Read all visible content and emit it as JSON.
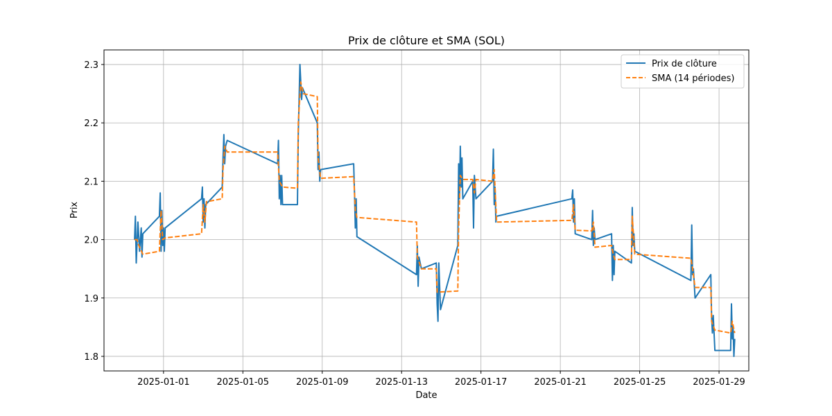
{
  "chart_data": {
    "type": "line",
    "title": "Prix de clôture et SMA (SOL)",
    "xlabel": "Date",
    "ylabel": "Prix",
    "xlim": [
      "2024-12-29T00:00",
      "2025-01-30T12:00"
    ],
    "ylim": [
      1.775,
      2.325
    ],
    "x_ticks": [
      "2025-01-01",
      "2025-01-05",
      "2025-01-09",
      "2025-01-13",
      "2025-01-17",
      "2025-01-21",
      "2025-01-25",
      "2025-01-29"
    ],
    "y_ticks": [
      1.8,
      1.9,
      2.0,
      2.1,
      2.2,
      2.3
    ],
    "y_tick_labels": [
      "1.8",
      "1.9",
      "2.0",
      "2.1",
      "2.2",
      "2.3"
    ],
    "grid": true,
    "legend_position": "top-right",
    "series": [
      {
        "name": "Prix de clôture",
        "color": "#1f77b4",
        "style": "solid",
        "points": [
          [
            "2024-12-30T13:00",
            2.0
          ],
          [
            "2024-12-30T14:00",
            2.04
          ],
          [
            "2024-12-30T15:00",
            1.96
          ],
          [
            "2024-12-30T17:00",
            2.03
          ],
          [
            "2024-12-30T19:00",
            1.98
          ],
          [
            "2024-12-30T21:00",
            2.02
          ],
          [
            "2024-12-30T22:00",
            1.97
          ],
          [
            "2024-12-30T23:00",
            2.01
          ],
          [
            "2024-12-31T19:00",
            2.04
          ],
          [
            "2024-12-31T20:00",
            2.08
          ],
          [
            "2024-12-31T21:00",
            1.98
          ],
          [
            "2024-12-31T22:00",
            2.05
          ],
          [
            "2024-12-31T23:00",
            1.99
          ],
          [
            "2025-01-01T00:00",
            2.02
          ],
          [
            "2025-01-01T01:00",
            1.98
          ],
          [
            "2025-01-01T02:00",
            2.02
          ],
          [
            "2025-01-02T22:00",
            2.07
          ],
          [
            "2025-01-02T23:00",
            2.09
          ],
          [
            "2025-01-03T00:00",
            2.03
          ],
          [
            "2025-01-03T01:00",
            2.07
          ],
          [
            "2025-01-03T02:00",
            2.02
          ],
          [
            "2025-01-03T03:00",
            2.06
          ],
          [
            "2025-01-03T23:00",
            2.09
          ],
          [
            "2025-01-04T00:00",
            2.14
          ],
          [
            "2025-01-04T01:00",
            2.18
          ],
          [
            "2025-01-04T02:00",
            2.13
          ],
          [
            "2025-01-04T03:00",
            2.16
          ],
          [
            "2025-01-04T05:00",
            2.17
          ],
          [
            "2025-01-06T18:00",
            2.13
          ],
          [
            "2025-01-06T19:00",
            2.17
          ],
          [
            "2025-01-06T20:00",
            2.07
          ],
          [
            "2025-01-06T21:00",
            2.11
          ],
          [
            "2025-01-06T22:00",
            2.06
          ],
          [
            "2025-01-06T23:00",
            2.11
          ],
          [
            "2025-01-07T00:00",
            2.06
          ],
          [
            "2025-01-07T18:00",
            2.06
          ],
          [
            "2025-01-07T19:00",
            2.18
          ],
          [
            "2025-01-07T21:00",
            2.3
          ],
          [
            "2025-01-07T23:00",
            2.24
          ],
          [
            "2025-01-08T00:00",
            2.26
          ],
          [
            "2025-01-08T18:00",
            2.2
          ],
          [
            "2025-01-08T19:00",
            2.12
          ],
          [
            "2025-01-08T20:00",
            2.15
          ],
          [
            "2025-01-08T21:00",
            2.1
          ],
          [
            "2025-01-08T22:00",
            2.12
          ],
          [
            "2025-01-10T14:00",
            2.13
          ],
          [
            "2025-01-10T15:00",
            2.08
          ],
          [
            "2025-01-10T16:00",
            2.02
          ],
          [
            "2025-01-10T17:00",
            2.07
          ],
          [
            "2025-01-10T18:00",
            2.005
          ],
          [
            "2025-01-13T18:00",
            1.94
          ],
          [
            "2025-01-13T19:00",
            1.99
          ],
          [
            "2025-01-13T20:00",
            1.92
          ],
          [
            "2025-01-13T21:00",
            1.97
          ],
          [
            "2025-01-14T00:00",
            1.95
          ],
          [
            "2025-01-14T18:00",
            1.96
          ],
          [
            "2025-01-14T19:00",
            1.89
          ],
          [
            "2025-01-14T20:00",
            1.86
          ],
          [
            "2025-01-14T21:00",
            1.96
          ],
          [
            "2025-01-14T23:00",
            1.88
          ],
          [
            "2025-01-15T20:00",
            1.99
          ],
          [
            "2025-01-15T21:00",
            2.13
          ],
          [
            "2025-01-15T22:00",
            2.07
          ],
          [
            "2025-01-15T23:00",
            2.16
          ],
          [
            "2025-01-16T00:00",
            2.09
          ],
          [
            "2025-01-16T01:00",
            2.14
          ],
          [
            "2025-01-16T02:00",
            2.07
          ],
          [
            "2025-01-16T14:00",
            2.1
          ],
          [
            "2025-01-16T15:00",
            2.02
          ],
          [
            "2025-01-16T16:00",
            2.11
          ],
          [
            "2025-01-16T18:00",
            2.07
          ],
          [
            "2025-01-17T14:00",
            2.1
          ],
          [
            "2025-01-17T15:00",
            2.155
          ],
          [
            "2025-01-17T16:00",
            2.06
          ],
          [
            "2025-01-17T17:00",
            2.09
          ],
          [
            "2025-01-17T18:00",
            2.03
          ],
          [
            "2025-01-17T19:00",
            2.04
          ],
          [
            "2025-01-21T14:00",
            2.07
          ],
          [
            "2025-01-21T15:00",
            2.085
          ],
          [
            "2025-01-21T16:00",
            2.03
          ],
          [
            "2025-01-21T17:00",
            2.07
          ],
          [
            "2025-01-21T18:00",
            2.01
          ],
          [
            "2025-01-22T14:00",
            2.0
          ],
          [
            "2025-01-22T15:00",
            2.05
          ],
          [
            "2025-01-22T16:00",
            1.99
          ],
          [
            "2025-01-22T17:00",
            2.02
          ],
          [
            "2025-01-22T18:00",
            2.0
          ],
          [
            "2025-01-23T14:00",
            2.01
          ],
          [
            "2025-01-23T15:00",
            1.93
          ],
          [
            "2025-01-23T16:00",
            1.99
          ],
          [
            "2025-01-23T17:00",
            1.94
          ],
          [
            "2025-01-23T18:00",
            1.98
          ],
          [
            "2025-01-24T14:00",
            1.96
          ],
          [
            "2025-01-24T15:00",
            2.055
          ],
          [
            "2025-01-24T16:00",
            1.99
          ],
          [
            "2025-01-24T17:00",
            2.01
          ],
          [
            "2025-01-24T18:00",
            1.98
          ],
          [
            "2025-01-27T14:00",
            1.93
          ],
          [
            "2025-01-27T15:00",
            2.025
          ],
          [
            "2025-01-27T16:00",
            1.94
          ],
          [
            "2025-01-27T17:00",
            1.95
          ],
          [
            "2025-01-27T19:00",
            1.9
          ],
          [
            "2025-01-28T14:00",
            1.94
          ],
          [
            "2025-01-28T15:00",
            1.87
          ],
          [
            "2025-01-28T16:00",
            1.84
          ],
          [
            "2025-01-28T17:00",
            1.87
          ],
          [
            "2025-01-28T18:00",
            1.84
          ],
          [
            "2025-01-28T19:00",
            1.81
          ],
          [
            "2025-01-29T14:00",
            1.81
          ],
          [
            "2025-01-29T15:00",
            1.89
          ],
          [
            "2025-01-29T16:00",
            1.83
          ],
          [
            "2025-01-29T17:00",
            1.85
          ],
          [
            "2025-01-29T18:00",
            1.8
          ],
          [
            "2025-01-29T19:00",
            1.83
          ]
        ]
      },
      {
        "name": "SMA (14 périodes)",
        "color": "#ff7f0e",
        "style": "dashed",
        "points": [
          [
            "2024-12-30T13:00",
            2.0
          ],
          [
            "2024-12-30T16:00",
            2.0
          ],
          [
            "2024-12-30T18:00",
            1.99
          ],
          [
            "2024-12-30T23:00",
            1.975
          ],
          [
            "2024-12-31T19:00",
            1.98
          ],
          [
            "2024-12-31T21:00",
            2.05
          ],
          [
            "2024-12-31T23:00",
            2.0
          ],
          [
            "2025-01-01T02:00",
            2.003
          ],
          [
            "2025-01-02T22:00",
            2.01
          ],
          [
            "2025-01-03T00:00",
            2.06
          ],
          [
            "2025-01-03T02:00",
            2.03
          ],
          [
            "2025-01-03T04:00",
            2.065
          ],
          [
            "2025-01-03T23:00",
            2.07
          ],
          [
            "2025-01-04T00:00",
            2.12
          ],
          [
            "2025-01-04T02:00",
            2.16
          ],
          [
            "2025-01-04T05:00",
            2.15
          ],
          [
            "2025-01-06T18:00",
            2.15
          ],
          [
            "2025-01-06T20:00",
            2.1
          ],
          [
            "2025-01-07T00:00",
            2.09
          ],
          [
            "2025-01-07T18:00",
            2.088
          ],
          [
            "2025-01-07T19:00",
            2.2
          ],
          [
            "2025-01-07T22:00",
            2.27
          ],
          [
            "2025-01-08T01:00",
            2.25
          ],
          [
            "2025-01-08T18:00",
            2.245
          ],
          [
            "2025-01-08T19:00",
            2.14
          ],
          [
            "2025-01-08T22:00",
            2.105
          ],
          [
            "2025-01-10T14:00",
            2.108
          ],
          [
            "2025-01-10T15:00",
            2.08
          ],
          [
            "2025-01-10T16:00",
            2.05
          ],
          [
            "2025-01-10T18:00",
            2.038
          ],
          [
            "2025-01-13T18:00",
            2.03
          ],
          [
            "2025-01-13T19:00",
            1.97
          ],
          [
            "2025-01-14T00:00",
            1.95
          ],
          [
            "2025-01-14T18:00",
            1.95
          ],
          [
            "2025-01-14T19:00",
            1.91
          ],
          [
            "2025-01-15T20:00",
            1.912
          ],
          [
            "2025-01-15T21:00",
            2.02
          ],
          [
            "2025-01-15T23:00",
            2.11
          ],
          [
            "2025-01-16T02:00",
            2.103
          ],
          [
            "2025-01-16T14:00",
            2.103
          ],
          [
            "2025-01-16T16:00",
            2.08
          ],
          [
            "2025-01-16T18:00",
            2.103
          ],
          [
            "2025-01-17T14:00",
            2.1
          ],
          [
            "2025-01-17T16:00",
            2.12
          ],
          [
            "2025-01-17T19:00",
            2.03
          ],
          [
            "2025-01-21T14:00",
            2.033
          ],
          [
            "2025-01-21T16:00",
            2.06
          ],
          [
            "2025-01-21T18:00",
            2.016
          ],
          [
            "2025-01-22T14:00",
            2.015
          ],
          [
            "2025-01-22T16:00",
            2.03
          ],
          [
            "2025-01-22T18:00",
            1.987
          ],
          [
            "2025-01-23T14:00",
            1.99
          ],
          [
            "2025-01-23T16:00",
            1.975
          ],
          [
            "2025-01-23T18:00",
            1.966
          ],
          [
            "2025-01-24T14:00",
            1.966
          ],
          [
            "2025-01-24T15:00",
            2.04
          ],
          [
            "2025-01-24T18:00",
            1.975
          ],
          [
            "2025-01-27T14:00",
            1.968
          ],
          [
            "2025-01-27T16:00",
            1.95
          ],
          [
            "2025-01-27T19:00",
            1.918
          ],
          [
            "2025-01-28T14:00",
            1.918
          ],
          [
            "2025-01-28T15:00",
            1.86
          ],
          [
            "2025-01-28T19:00",
            1.845
          ],
          [
            "2025-01-29T14:00",
            1.84
          ],
          [
            "2025-01-29T16:00",
            1.86
          ],
          [
            "2025-01-29T19:00",
            1.84
          ]
        ]
      }
    ]
  }
}
